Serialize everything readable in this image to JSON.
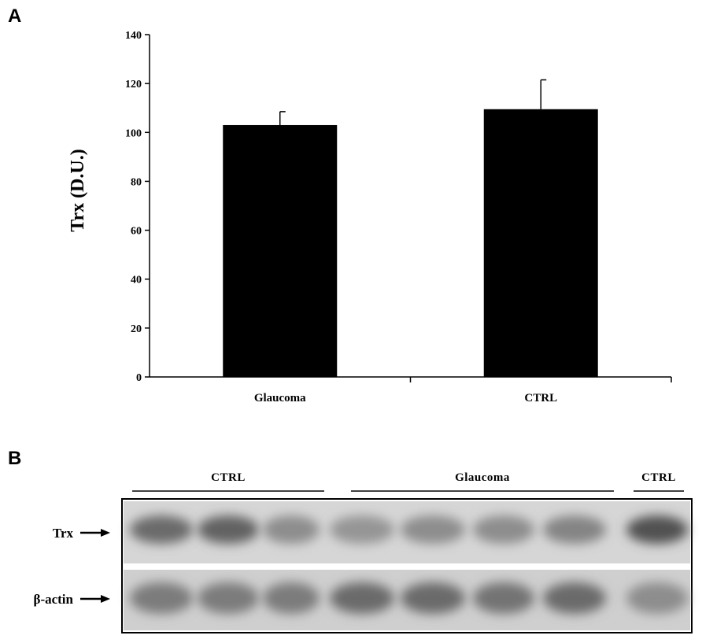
{
  "panels": {
    "a_letter": "A",
    "b_letter": "B"
  },
  "chart_data": {
    "type": "bar",
    "categories": [
      "Glaucoma",
      "CTRL"
    ],
    "values": [
      103,
      109.5
    ],
    "errors": [
      5.5,
      12
    ],
    "ylabel": "Trx (D.U.)",
    "xlabel": "",
    "title": "",
    "ylim": [
      0,
      140
    ],
    "yticks": [
      0,
      20,
      40,
      60,
      80,
      100,
      120,
      140
    ],
    "bar_color": "#000000",
    "grid": false,
    "legend": "none"
  },
  "blot": {
    "groups": [
      "CTRL",
      "Glaucoma",
      "CTRL"
    ],
    "rows": [
      {
        "label": "Trx"
      },
      {
        "label": "β-actin"
      }
    ],
    "lanes": 8,
    "trx_intensity": [
      0.55,
      0.6,
      0.35,
      0.3,
      0.35,
      0.35,
      0.4,
      0.7
    ],
    "actin_intensity": [
      0.45,
      0.45,
      0.45,
      0.55,
      0.55,
      0.5,
      0.55,
      0.35
    ]
  }
}
